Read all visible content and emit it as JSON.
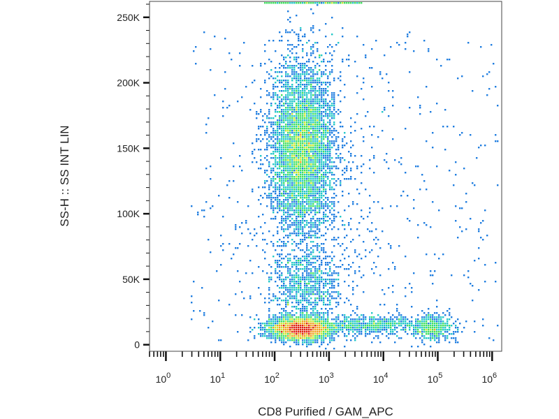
{
  "chart_data": {
    "type": "scatter",
    "title": "",
    "xlabel": "CD8 Purified / GAM_APC",
    "ylabel": "SS-H :: SS INT LIN",
    "x_scale": "log",
    "y_scale": "linear",
    "xlim": [
      0.5,
      1500000
    ],
    "ylim": [
      -5000,
      262144
    ],
    "x_ticks": [
      {
        "base": "10",
        "exp": "0",
        "value": 1
      },
      {
        "base": "10",
        "exp": "1",
        "value": 10
      },
      {
        "base": "10",
        "exp": "2",
        "value": 100
      },
      {
        "base": "10",
        "exp": "3",
        "value": 1000
      },
      {
        "base": "10",
        "exp": "4",
        "value": 10000
      },
      {
        "base": "10",
        "exp": "5",
        "value": 100000
      },
      {
        "base": "10",
        "exp": "6",
        "value": 1000000
      }
    ],
    "y_ticks": [
      {
        "label": "0",
        "value": 0
      },
      {
        "label": "50K",
        "value": 50000
      },
      {
        "label": "100K",
        "value": 100000
      },
      {
        "label": "150K",
        "value": 150000
      },
      {
        "label": "200K",
        "value": 200000
      },
      {
        "label": "250K",
        "value": 250000
      }
    ],
    "density_colormap": [
      "#1a1acc",
      "#1e7de0",
      "#22c8c8",
      "#40e060",
      "#c8e832",
      "#f0a020",
      "#e02010"
    ],
    "populations": [
      {
        "x_center": 300,
        "y_center": 12000,
        "count": 3200
      },
      {
        "x_center": 320,
        "y_center": 150000,
        "count": 5200
      },
      {
        "x_center": 380,
        "y_center": 45000,
        "count": 900
      },
      {
        "x_center": 6000,
        "y_center": 15000,
        "count": 700
      },
      {
        "x_center": 80000,
        "y_center": 13000,
        "count": 500
      },
      {
        "x_center": 1000,
        "y_center": 100000,
        "count": 400
      }
    ]
  }
}
